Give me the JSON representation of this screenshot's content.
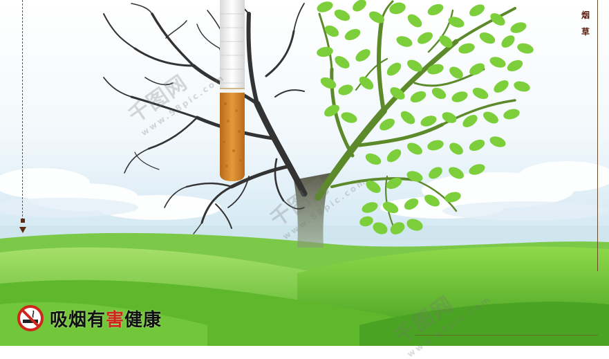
{
  "poster": {
    "vertical_text": [
      "烟",
      "草"
    ],
    "slogan_part1": "吸烟有",
    "slogan_highlight": "害",
    "slogan_part2": "健康",
    "watermark_logo": "千图网",
    "watermark_url": "www.58pic.com",
    "icons": [
      "no-smoking-icon",
      "arrow-down-icon"
    ],
    "colors": {
      "sky_top": "#ffffff",
      "sky_bottom": "#cfe6f2",
      "grass_light": "#8fd94a",
      "grass_dark": "#3f9a1e",
      "dead_tree": "#3a3a3a",
      "live_leaves": "#7ccf3a",
      "cigarette_filter": "#d88a2c",
      "slogan_highlight": "#d0251b",
      "frame": "#6b4a2a"
    }
  }
}
